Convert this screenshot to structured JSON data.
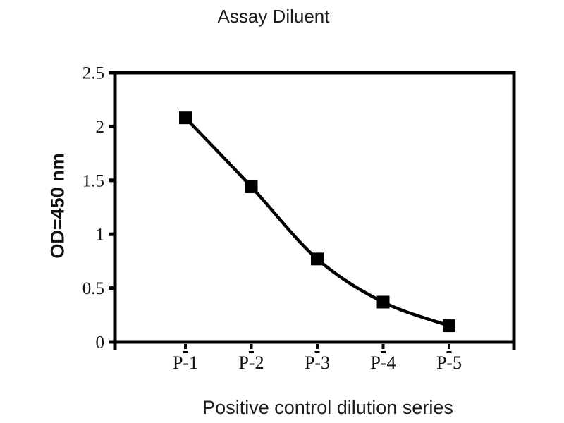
{
  "page": {
    "background_color": "#ffffff",
    "ink_color": "#000000",
    "text_color": "#1c1c1c"
  },
  "chart_data": {
    "type": "line",
    "title": "Assay Diluent",
    "xlabel": "Positive control dilution series",
    "ylabel": "OD=450 nm",
    "categories": [
      "P-1",
      "P-2",
      "P-3",
      "P-4",
      "P-5"
    ],
    "values": [
      2.08,
      1.44,
      0.77,
      0.37,
      0.15
    ],
    "ylim": [
      0,
      2.5
    ],
    "yticks": [
      0,
      0.5,
      1,
      1.5,
      2,
      2.5
    ],
    "ytick_labels": [
      "0",
      "0.5",
      "1",
      "1.5",
      "2",
      "2.5"
    ],
    "grid": false,
    "legend": "none",
    "line_style": "smooth",
    "marker": "square",
    "line_color": "#000000",
    "marker_color": "#000000",
    "axis_color": "#000000"
  }
}
